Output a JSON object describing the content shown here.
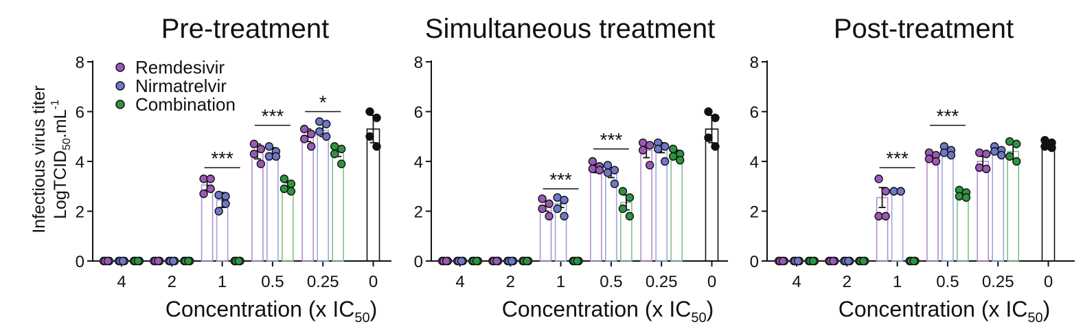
{
  "figure": {
    "ylabel_line1": "Infectious virus titer",
    "ylabel_line2_prefix": "LogTCID",
    "ylabel_line2_sub": "50",
    "ylabel_line2_mid": ".mL",
    "ylabel_line2_sup": "-1"
  },
  "legend": [
    {
      "label": "Remdesivir",
      "color": "#9b59b6"
    },
    {
      "label": "Nirmatrelvir",
      "color": "#6f77c9"
    },
    {
      "label": "Combination",
      "color": "#2e9440"
    }
  ],
  "chart_data": [
    {
      "type": "bar",
      "title": "Pre-treatment",
      "xlabel": "Concentration (x IC50)",
      "xlabel_prefix": "Concentration (x IC",
      "xlabel_sub": "50",
      "xlabel_suffix": ")",
      "ylabel": "Infectious virus titer LogTCID50.mL-1",
      "ylim": [
        0,
        8
      ],
      "yticks": [
        0,
        2,
        4,
        6,
        8
      ],
      "categories": [
        "4",
        "2",
        "1",
        "0.5",
        "0.25",
        "0"
      ],
      "series": [
        {
          "name": "Remdesivir",
          "values": [
            0,
            0,
            3.05,
            4.4,
            5.05,
            null
          ],
          "error": [
            0,
            0,
            0.2,
            0.3,
            0.25,
            null
          ],
          "points": [
            [
              0,
              0,
              0,
              0
            ],
            [
              0,
              0,
              0,
              0
            ],
            [
              3.3,
              3.3,
              2.7,
              2.9
            ],
            [
              4.7,
              4.5,
              4.3,
              3.9
            ],
            [
              5.3,
              5.1,
              4.9,
              4.6
            ]
          ]
        },
        {
          "name": "Nirmatrelvir",
          "values": [
            0,
            0,
            2.45,
            4.35,
            5.25,
            null
          ],
          "error": [
            0,
            0,
            0.3,
            0.2,
            0.25,
            null
          ],
          "points": [
            [
              0,
              0,
              0,
              0
            ],
            [
              0,
              0,
              0,
              0
            ],
            [
              2.65,
              2.3,
              2.0,
              2.6
            ],
            [
              4.6,
              4.4,
              4.2,
              4.2
            ],
            [
              5.6,
              5.5,
              5.2,
              5.0
            ]
          ]
        },
        {
          "name": "Combination",
          "values": [
            0,
            0,
            0,
            3.0,
            4.4,
            null
          ],
          "error": [
            0,
            0,
            0,
            0.15,
            0.2,
            null
          ],
          "points": [
            [
              0,
              0,
              0,
              0
            ],
            [
              0,
              0,
              0,
              0
            ],
            [
              0,
              0,
              0,
              0
            ],
            [
              3.3,
              3.1,
              2.9,
              2.8
            ],
            [
              4.6,
              4.5,
              4.3,
              3.9
            ]
          ]
        },
        {
          "name": "",
          "values": [
            null,
            null,
            null,
            null,
            null,
            5.3
          ],
          "error": [
            null,
            null,
            null,
            null,
            null,
            0.55
          ],
          "points": [
            [],
            [],
            [],
            [],
            [],
            [
              6.0,
              5.75,
              5.0,
              4.6
            ]
          ]
        }
      ],
      "significance": [
        {
          "category": "1",
          "label": "***",
          "value": 3.75
        },
        {
          "category": "0.5",
          "label": "***",
          "value": 5.45
        },
        {
          "category": "0.25",
          "label": "*",
          "value": 6.0
        }
      ]
    },
    {
      "type": "bar",
      "title": "Simultaneous treatment",
      "xlabel": "Concentration (x IC50)",
      "xlabel_prefix": "Concentration (x IC",
      "xlabel_sub": "50",
      "xlabel_suffix": ")",
      "ylim": [
        0,
        8
      ],
      "yticks": [
        0,
        2,
        4,
        6,
        8
      ],
      "categories": [
        "4",
        "2",
        "1",
        "0.5",
        "0.25",
        "0"
      ],
      "series": [
        {
          "name": "Remdesivir",
          "values": [
            0,
            0,
            2.2,
            3.7,
            4.45,
            null
          ],
          "error": [
            0,
            0,
            0.2,
            0.15,
            0.3,
            null
          ],
          "points": [
            [
              0,
              0,
              0,
              0
            ],
            [
              0,
              0,
              0,
              0
            ],
            [
              2.5,
              2.3,
              2.1,
              1.8
            ],
            [
              4.0,
              3.8,
              3.7,
              3.65
            ],
            [
              4.75,
              4.65,
              4.45,
              3.85
            ]
          ]
        },
        {
          "name": "Nirmatrelvir",
          "values": [
            0,
            0,
            2.3,
            3.55,
            4.55,
            null
          ],
          "error": [
            0,
            0,
            0.15,
            0.2,
            0.2,
            null
          ],
          "points": [
            [
              0,
              0,
              0,
              0
            ],
            [
              0,
              0,
              0,
              0
            ],
            [
              2.55,
              2.45,
              2.1,
              1.8
            ],
            [
              3.85,
              3.65,
              3.55,
              3.1
            ],
            [
              4.75,
              4.6,
              4.5,
              4.0
            ]
          ]
        },
        {
          "name": "Combination",
          "values": [
            0,
            0,
            0,
            2.35,
            4.3,
            null
          ],
          "error": [
            0,
            0,
            0,
            0.3,
            0.15,
            null
          ],
          "points": [
            [
              0,
              0,
              0,
              0
            ],
            [
              0,
              0,
              0,
              0
            ],
            [
              0,
              0,
              0,
              0
            ],
            [
              2.8,
              2.55,
              2.1,
              1.8
            ],
            [
              4.5,
              4.3,
              4.2,
              4.05
            ]
          ]
        },
        {
          "name": "",
          "values": [
            null,
            null,
            null,
            null,
            null,
            5.3
          ],
          "error": [
            null,
            null,
            null,
            null,
            null,
            0.55
          ],
          "points": [
            [],
            [],
            [],
            [],
            [],
            [
              6.0,
              5.75,
              4.95,
              4.6
            ]
          ]
        }
      ],
      "significance": [
        {
          "category": "1",
          "label": "***",
          "value": 2.9
        },
        {
          "category": "0.5",
          "label": "***",
          "value": 4.5
        }
      ]
    },
    {
      "type": "bar",
      "title": "Post-treatment",
      "xlabel": "Concentration (x IC50)",
      "xlabel_prefix": "Concentration (x IC",
      "xlabel_sub": "50",
      "xlabel_suffix": ")",
      "ylim": [
        0,
        8
      ],
      "yticks": [
        0,
        2,
        4,
        6,
        8
      ],
      "categories": [
        "4",
        "2",
        "1",
        "0.5",
        "0.25",
        "0"
      ],
      "series": [
        {
          "name": "Remdesivir",
          "values": [
            0,
            0,
            2.55,
            4.15,
            4.0,
            null
          ],
          "error": [
            0,
            0,
            0.4,
            0.1,
            0.2,
            null
          ],
          "points": [
            [
              0,
              0,
              0,
              0
            ],
            [
              0,
              0,
              0,
              0
            ],
            [
              3.3,
              2.8,
              1.8,
              1.8
            ],
            [
              4.35,
              4.25,
              4.1,
              4.0
            ],
            [
              4.35,
              4.3,
              3.75,
              3.7
            ]
          ]
        },
        {
          "name": "Nirmatrelvir",
          "values": [
            0,
            0,
            2.8,
            4.4,
            4.4,
            null
          ],
          "error": [
            0,
            0,
            0.05,
            0.1,
            0.1,
            null
          ],
          "points": [
            [
              0,
              0,
              0,
              0
            ],
            [
              0,
              0,
              0,
              0
            ],
            [
              2.8,
              2.8,
              2.8,
              2.8
            ],
            [
              4.6,
              4.45,
              4.35,
              4.25
            ],
            [
              4.6,
              4.45,
              4.4,
              4.25
            ]
          ]
        },
        {
          "name": "Combination",
          "values": [
            0,
            0,
            0,
            2.7,
            4.4,
            null
          ],
          "error": [
            0,
            0,
            0,
            0.1,
            0.3,
            null
          ],
          "points": [
            [
              0,
              0,
              0,
              0
            ],
            [
              0,
              0,
              0,
              0
            ],
            [
              0,
              0,
              0,
              0
            ],
            [
              2.85,
              2.75,
              2.6,
              2.55
            ],
            [
              4.8,
              4.7,
              4.2,
              4.0
            ]
          ]
        },
        {
          "name": "",
          "values": [
            null,
            null,
            null,
            null,
            null,
            4.65
          ],
          "error": [
            null,
            null,
            null,
            null,
            null,
            0.1
          ],
          "points": [
            [],
            [],
            [],
            [],
            [],
            [
              4.85,
              4.75,
              4.6,
              4.55
            ]
          ]
        }
      ],
      "significance": [
        {
          "category": "1",
          "label": "***",
          "value": 3.75
        },
        {
          "category": "0.5",
          "label": "***",
          "value": 5.45
        }
      ]
    }
  ]
}
